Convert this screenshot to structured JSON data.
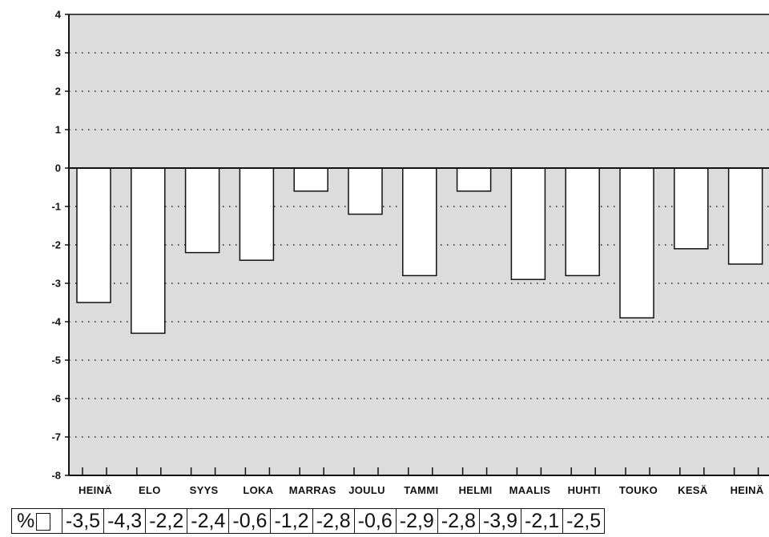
{
  "chart_data": {
    "type": "bar",
    "categories": [
      "HEINÄ",
      "ELO",
      "SYYS",
      "LOKA",
      "MARRAS",
      "JOULU",
      "TAMMI",
      "HELMI",
      "MAALIS",
      "HUHTI",
      "TOUKO",
      "KESÄ",
      "HEINÄ"
    ],
    "values": [
      -3.5,
      -4.3,
      -2.2,
      -2.4,
      -0.6,
      -1.2,
      -2.8,
      -0.6,
      -2.9,
      -2.8,
      -3.9,
      -2.1,
      -2.5
    ],
    "ylim": [
      -8,
      4
    ],
    "yticks": [
      "4",
      "3",
      "2",
      "1",
      "0",
      "-1",
      "-2",
      "-3",
      "-4",
      "-5",
      "-6",
      "-7",
      "-8"
    ],
    "grid": "dotted horizontal",
    "plot_color": "#dcdcdc",
    "bar_color": "#ffffff",
    "title": "",
    "xlabel": "",
    "ylabel": ""
  },
  "value_table": {
    "unit": "%",
    "cells": [
      "-3,5",
      "-4,3",
      "-2,2",
      "-2,4",
      "-0,6",
      "-1,2",
      "-2,8",
      "-0,6",
      "-2,9",
      "-2,8",
      "-3,9",
      "-2,1",
      "-2,5"
    ]
  }
}
